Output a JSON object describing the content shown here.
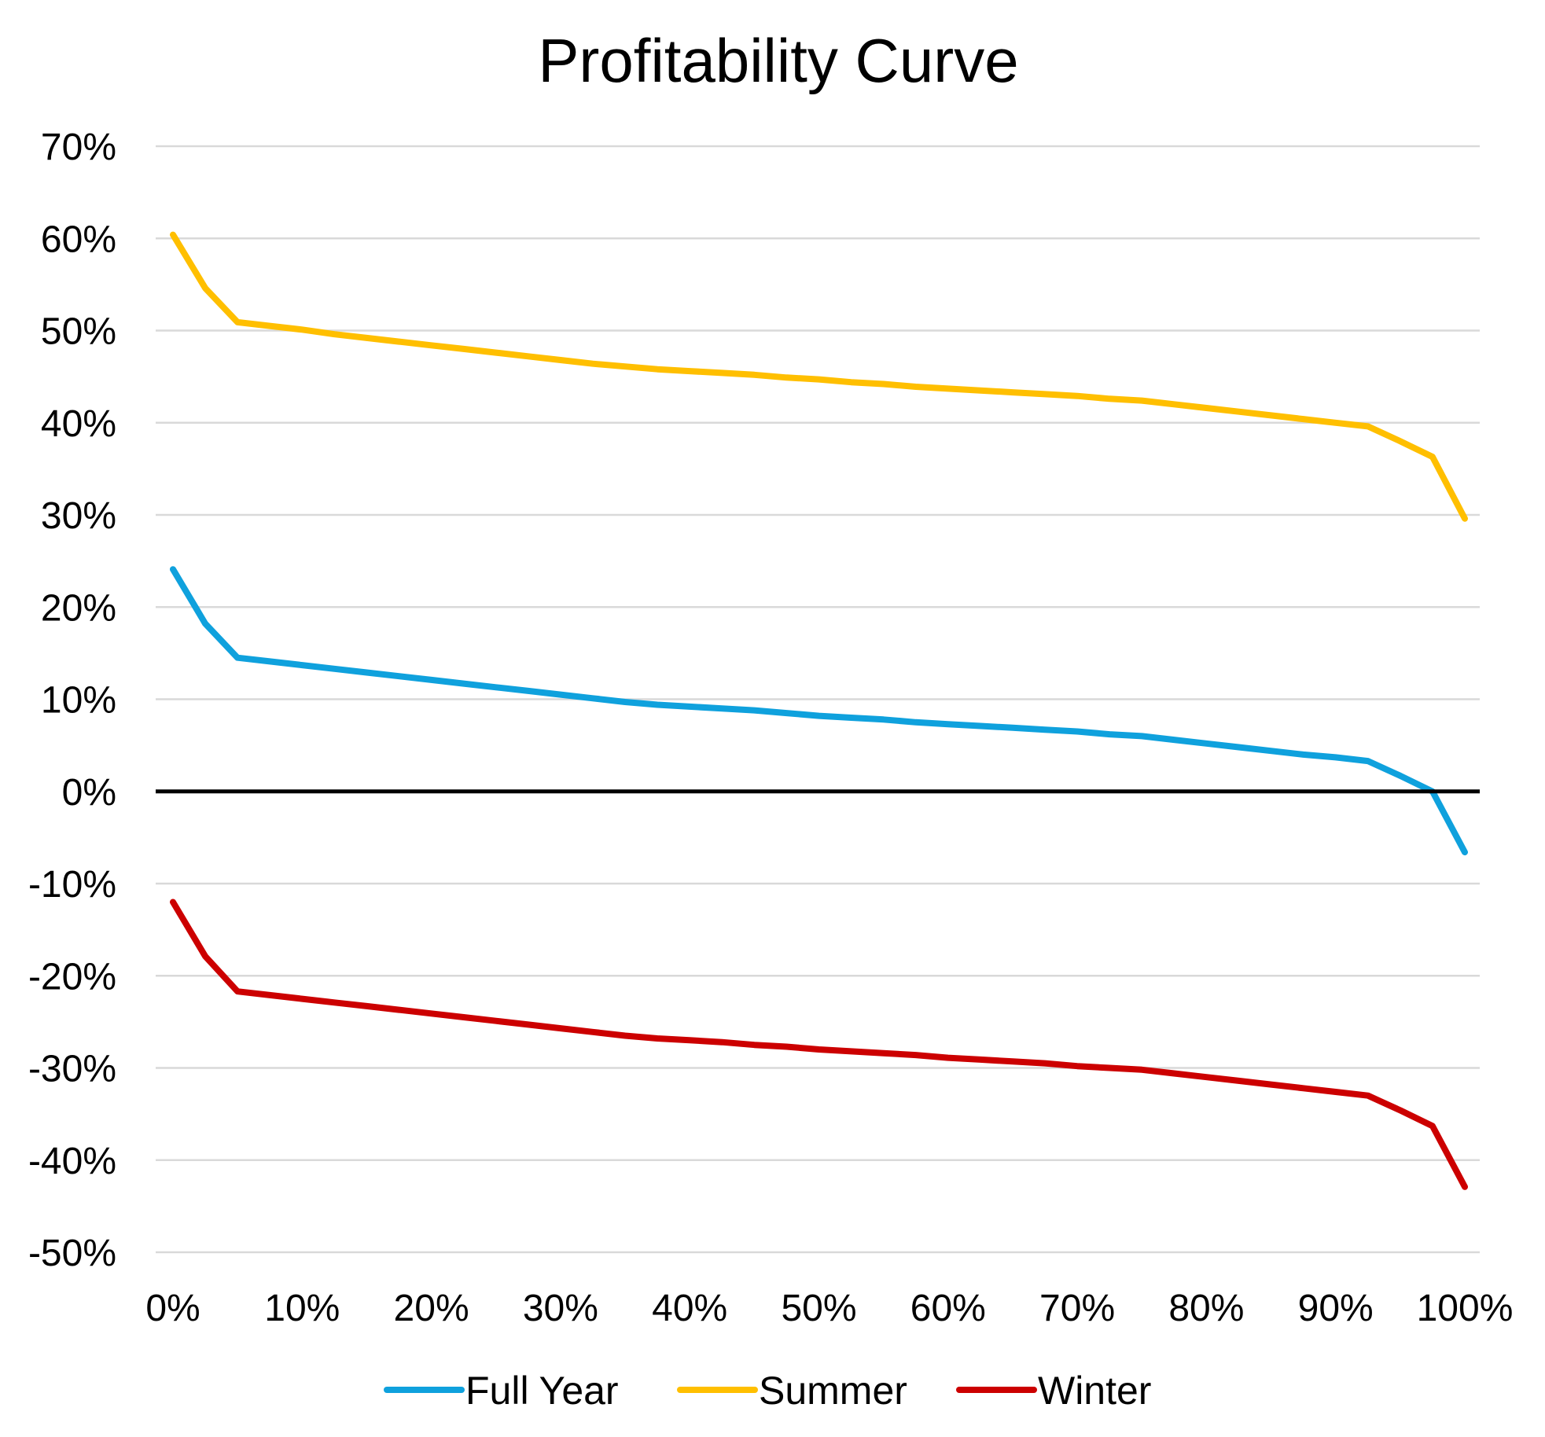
{
  "chart_data": {
    "type": "line",
    "title": "Profitability Curve",
    "xlabel": "",
    "ylabel": "",
    "xlim": [
      0,
      100
    ],
    "ylim": [
      -50,
      70
    ],
    "x_ticks": [
      "0%",
      "10%",
      "20%",
      "30%",
      "40%",
      "50%",
      "60%",
      "70%",
      "80%",
      "90%",
      "100%"
    ],
    "y_ticks": [
      "70%",
      "60%",
      "50%",
      "40%",
      "30%",
      "20%",
      "10%",
      "0%",
      "-10%",
      "-20%",
      "-30%",
      "-40%",
      "-50%"
    ],
    "y_tick_values": [
      70,
      60,
      50,
      40,
      30,
      20,
      10,
      0,
      -10,
      -20,
      -30,
      -40,
      -50
    ],
    "grid": true,
    "legend_position": "bottom",
    "x": [
      0,
      2.5,
      5,
      7.5,
      10,
      12.5,
      15,
      17.5,
      20,
      22.5,
      25,
      27.5,
      30,
      32.5,
      35,
      37.5,
      40,
      42.5,
      45,
      47.5,
      50,
      52.5,
      55,
      57.5,
      60,
      62.5,
      65,
      67.5,
      70,
      72.5,
      75,
      77.5,
      80,
      82.5,
      85,
      87.5,
      90,
      92.5,
      95,
      97.5,
      100
    ],
    "series": [
      {
        "name": "Full Year",
        "color": "#0fa1dd",
        "values": [
          24.1,
          18.2,
          14.5,
          14.1,
          13.7,
          13.3,
          12.9,
          12.5,
          12.1,
          11.7,
          11.3,
          10.9,
          10.5,
          10.1,
          9.7,
          9.4,
          9.2,
          9.0,
          8.8,
          8.5,
          8.2,
          8.0,
          7.8,
          7.5,
          7.3,
          7.1,
          6.9,
          6.7,
          6.5,
          6.2,
          6.0,
          5.6,
          5.2,
          4.8,
          4.4,
          4.0,
          3.7,
          3.3,
          1.7,
          0.0,
          -6.6
        ]
      },
      {
        "name": "Summer",
        "color": "#ffbf00",
        "values": [
          60.4,
          54.6,
          50.9,
          50.5,
          50.1,
          49.6,
          49.2,
          48.8,
          48.4,
          48.0,
          47.6,
          47.2,
          46.8,
          46.4,
          46.1,
          45.8,
          45.6,
          45.4,
          45.2,
          44.9,
          44.7,
          44.4,
          44.2,
          43.9,
          43.7,
          43.5,
          43.3,
          43.1,
          42.9,
          42.6,
          42.4,
          42.0,
          41.6,
          41.2,
          40.8,
          40.4,
          40.0,
          39.6,
          38.0,
          36.3,
          29.6
        ]
      },
      {
        "name": "Winter",
        "color": "#cc0000",
        "values": [
          -12.0,
          -17.9,
          -21.7,
          -22.1,
          -22.5,
          -22.9,
          -23.3,
          -23.7,
          -24.1,
          -24.5,
          -24.9,
          -25.3,
          -25.7,
          -26.1,
          -26.5,
          -26.8,
          -27.0,
          -27.2,
          -27.5,
          -27.7,
          -28.0,
          -28.2,
          -28.4,
          -28.6,
          -28.9,
          -29.1,
          -29.3,
          -29.5,
          -29.8,
          -30.0,
          -30.2,
          -30.6,
          -31.0,
          -31.4,
          -31.8,
          -32.2,
          -32.6,
          -33.0,
          -34.6,
          -36.3,
          -42.9
        ]
      }
    ]
  }
}
